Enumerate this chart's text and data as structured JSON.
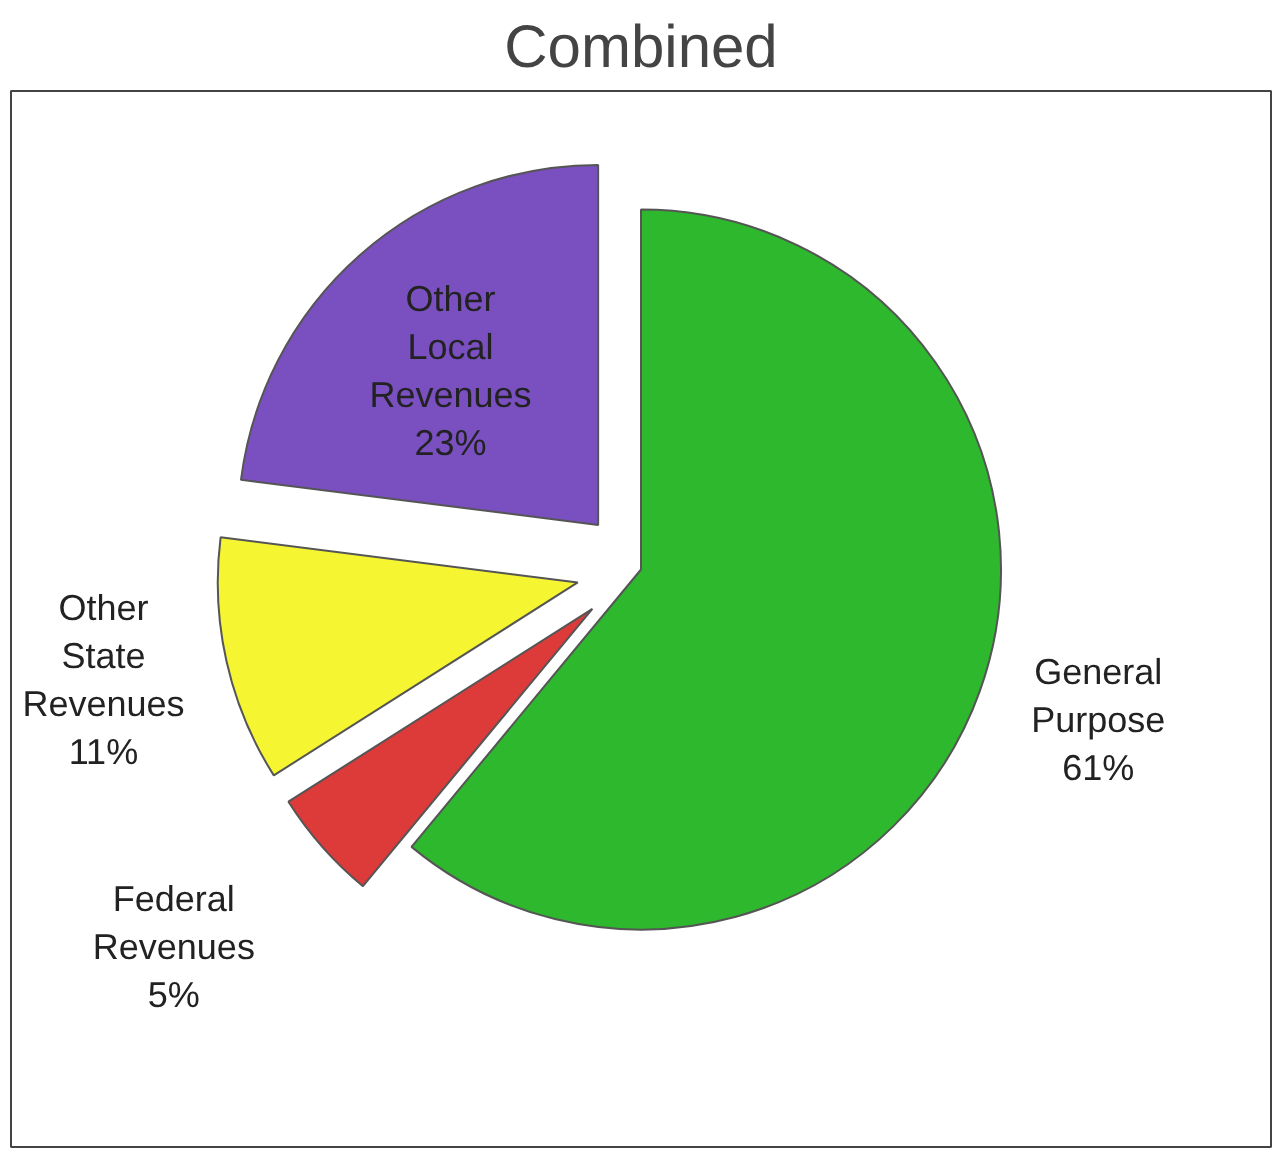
{
  "chart_data": {
    "type": "pie",
    "title": "Combined",
    "categories": [
      "General Purpose",
      "Federal Revenues",
      "Other State Revenues",
      "Other Local Revenues"
    ],
    "values": [
      61,
      5,
      11,
      23
    ],
    "value_labels": [
      "61%",
      "5%",
      "11%",
      "23%"
    ],
    "colors": [
      "#2db82d",
      "#dd3a3a",
      "#f5f532",
      "#7a4fc0"
    ]
  }
}
